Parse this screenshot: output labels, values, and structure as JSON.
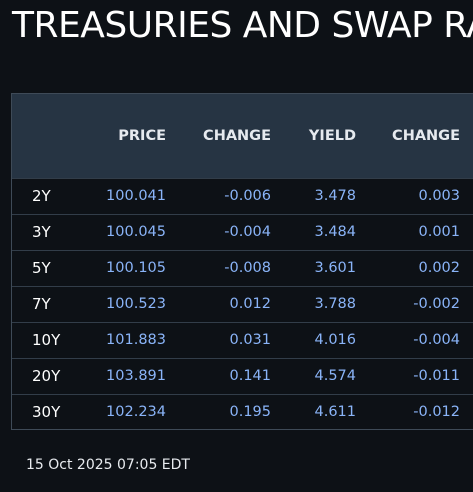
{
  "title": "TREASURIES AND SWAP RA",
  "table": {
    "columns": [
      "",
      "PRICE",
      "CHANGE",
      "YIELD",
      "CHANGE"
    ],
    "rows": [
      {
        "tenor": "2Y",
        "price": "100.041",
        "price_change": "-0.006",
        "yield": "3.478",
        "yield_change": "0.003"
      },
      {
        "tenor": "3Y",
        "price": "100.045",
        "price_change": "-0.004",
        "yield": "3.484",
        "yield_change": "0.001"
      },
      {
        "tenor": "5Y",
        "price": "100.105",
        "price_change": "-0.008",
        "yield": "3.601",
        "yield_change": "0.002"
      },
      {
        "tenor": "7Y",
        "price": "100.523",
        "price_change": "0.012",
        "yield": "3.788",
        "yield_change": "-0.002"
      },
      {
        "tenor": "10Y",
        "price": "101.883",
        "price_change": "0.031",
        "yield": "4.016",
        "yield_change": "-0.004"
      },
      {
        "tenor": "20Y",
        "price": "103.891",
        "price_change": "0.141",
        "yield": "4.574",
        "yield_change": "-0.011"
      },
      {
        "tenor": "30Y",
        "price": "102.234",
        "price_change": "0.195",
        "yield": "4.611",
        "yield_change": "-0.012"
      }
    ]
  },
  "timestamp": "15 Oct 2025 07:05 EDT",
  "colors": {
    "background": "#0d1116",
    "header_background": "#263443",
    "value_text": "#8ab4f8",
    "label_text": "#ffffff"
  }
}
